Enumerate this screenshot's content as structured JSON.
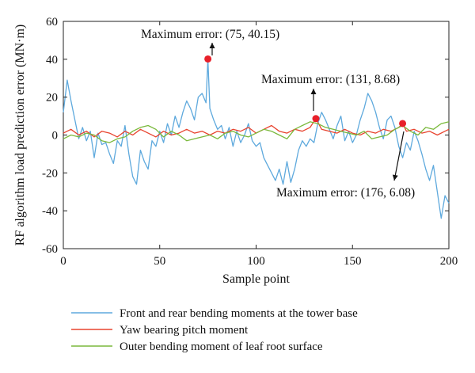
{
  "chart_data": {
    "type": "line",
    "xlabel": "Sample point",
    "ylabel": "RF algorithm load prediction error (MN·m)",
    "xlim": [
      0,
      200
    ],
    "ylim": [
      -60,
      60
    ],
    "xticks": [
      "0",
      "50",
      "100",
      "150",
      "200"
    ],
    "yticks": [
      "60",
      "40",
      "20",
      "0",
      "-20",
      "-40",
      "-60"
    ],
    "grid": false,
    "legend_position": "below",
    "series": [
      {
        "name": "Front and rear bending moments at the tower base",
        "color": "#5ea9dd",
        "x": [
          0,
          2,
          4,
          6,
          8,
          10,
          12,
          14,
          16,
          18,
          20,
          22,
          24,
          26,
          28,
          30,
          32,
          34,
          36,
          38,
          40,
          42,
          44,
          46,
          48,
          50,
          52,
          54,
          56,
          58,
          60,
          62,
          64,
          66,
          68,
          70,
          72,
          74,
          75,
          76,
          78,
          80,
          82,
          84,
          86,
          88,
          90,
          92,
          94,
          96,
          98,
          100,
          102,
          104,
          106,
          108,
          110,
          112,
          114,
          116,
          118,
          120,
          122,
          124,
          126,
          128,
          130,
          132,
          134,
          136,
          138,
          140,
          142,
          144,
          146,
          148,
          150,
          152,
          154,
          156,
          158,
          160,
          162,
          164,
          166,
          168,
          170,
          172,
          174,
          176,
          178,
          180,
          182,
          184,
          186,
          188,
          190,
          192,
          194,
          196,
          198,
          200
        ],
        "y": [
          12,
          29,
          18,
          8,
          -2,
          4,
          -3,
          2,
          -12,
          1,
          -5,
          -4,
          -10,
          -15,
          -3,
          -6,
          5,
          -10,
          -22,
          -26,
          -8,
          -14,
          -18,
          -3,
          -6,
          2,
          -4,
          6,
          0,
          10,
          4,
          12,
          18,
          14,
          8,
          20,
          22,
          17,
          40.15,
          14,
          8,
          3,
          5,
          -2,
          4,
          -6,
          2,
          -4,
          0,
          6,
          -3,
          -6,
          -4,
          -12,
          -16,
          -20,
          -24,
          -18,
          -26,
          -14,
          -25,
          -18,
          -8,
          -3,
          -6,
          -2,
          -4,
          6,
          12,
          8,
          3,
          -2,
          5,
          10,
          -3,
          2,
          -4,
          0,
          8,
          14,
          22,
          18,
          12,
          4,
          -2,
          8,
          10,
          4,
          -6,
          -12,
          -4,
          -8,
          2,
          -3,
          -10,
          -18,
          -24,
          -16,
          -30,
          -44,
          -32,
          -36
        ]
      },
      {
        "name": "Yaw bearing pitch moment",
        "color": "#e8432e",
        "x": [
          0,
          4,
          8,
          12,
          16,
          20,
          24,
          28,
          32,
          36,
          40,
          44,
          48,
          52,
          56,
          60,
          64,
          68,
          72,
          76,
          80,
          84,
          88,
          92,
          96,
          100,
          104,
          108,
          112,
          116,
          120,
          124,
          128,
          131,
          134,
          138,
          142,
          146,
          150,
          154,
          158,
          162,
          166,
          170,
          174,
          176,
          178,
          182,
          186,
          190,
          194,
          198,
          200
        ],
        "y": [
          1,
          3,
          0,
          2,
          -1,
          2,
          1,
          -1,
          2,
          0,
          3,
          1,
          -1,
          2,
          0,
          1,
          3,
          1,
          2,
          0,
          2,
          1,
          3,
          2,
          4,
          1,
          3,
          5,
          2,
          1,
          3,
          2,
          4,
          8.68,
          3,
          2,
          1,
          3,
          1,
          0,
          2,
          1,
          3,
          2,
          4,
          6.08,
          2,
          3,
          1,
          2,
          0,
          2,
          3
        ]
      },
      {
        "name": "Outer bending moment of leaf root surface",
        "color": "#7ab93c",
        "x": [
          0,
          4,
          8,
          12,
          16,
          20,
          24,
          28,
          32,
          36,
          40,
          44,
          48,
          52,
          56,
          60,
          64,
          68,
          72,
          76,
          80,
          84,
          88,
          92,
          96,
          100,
          104,
          108,
          112,
          116,
          120,
          124,
          128,
          132,
          136,
          140,
          144,
          148,
          152,
          156,
          160,
          164,
          168,
          172,
          176,
          180,
          184,
          188,
          192,
          196,
          200
        ],
        "y": [
          -2,
          0,
          -1,
          1,
          0,
          -3,
          -4,
          -2,
          -1,
          2,
          4,
          5,
          3,
          -1,
          2,
          0,
          -3,
          -2,
          -1,
          0,
          -2,
          1,
          2,
          0,
          -1,
          1,
          3,
          2,
          0,
          -2,
          3,
          5,
          7,
          6,
          4,
          3,
          2,
          1,
          0,
          2,
          -2,
          -1,
          0,
          3,
          5,
          2,
          0,
          4,
          3,
          6,
          7
        ]
      }
    ],
    "annotations": [
      {
        "label": "Maximum error: (75, 40.15)",
        "x": 75,
        "y": 40.15
      },
      {
        "label": "Maximum error: (131, 8.68)",
        "x": 131,
        "y": 8.68
      },
      {
        "label": "Maximum error: (176, 6.08)",
        "x": 176,
        "y": 6.08
      }
    ],
    "marker_color": "#e8202a"
  }
}
